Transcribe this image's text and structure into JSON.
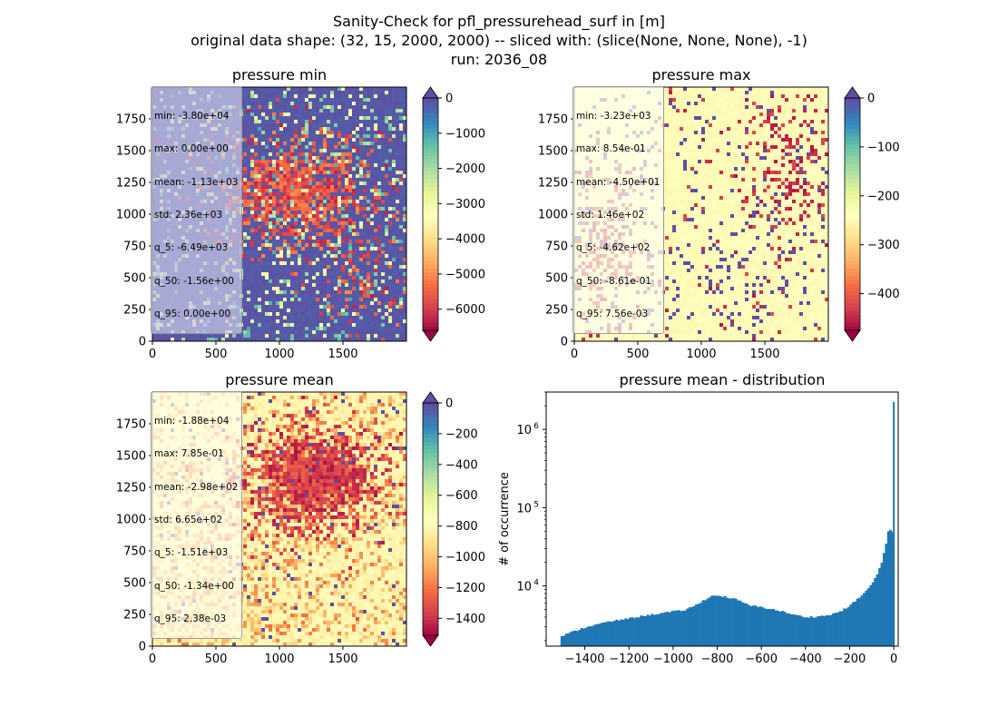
{
  "suptitle": {
    "line1": "Sanity-Check for pfl_pressurehead_surf in [m]",
    "line2": "original data shape: (32, 15, 2000, 2000) -- sliced with: (slice(None, None, None), -1)",
    "line3": "run: 2036_08"
  },
  "chart_data": [
    {
      "type": "heatmap",
      "title": "pressure min",
      "xlim": [
        0,
        2000
      ],
      "ylim": [
        0,
        2000
      ],
      "xticks": [
        0,
        500,
        1000,
        1500
      ],
      "yticks": [
        0,
        250,
        500,
        750,
        1000,
        1250,
        1500,
        1750
      ],
      "colormap": "Spectral",
      "colorbar": {
        "vmin": -6600,
        "vmax": 0,
        "ticks": [
          0,
          -1000,
          -2000,
          -3000,
          -4000,
          -5000,
          -6000
        ],
        "extend": "both"
      },
      "stats": [
        "min: -3.80e+04",
        "max: 0.00e+00",
        "mean: -1.13e+03",
        "std: 2.36e+03",
        "q_5: -6.49e+03",
        "q_50: -1.56e+00",
        "q_95: 0.00e+00"
      ]
    },
    {
      "type": "heatmap",
      "title": "pressure max",
      "xlim": [
        0,
        2000
      ],
      "ylim": [
        0,
        2000
      ],
      "xticks": [
        0,
        500,
        1000,
        1500
      ],
      "yticks": [
        0,
        250,
        500,
        750,
        1000,
        1250,
        1500,
        1750
      ],
      "colormap": "Spectral",
      "colorbar": {
        "vmin": -475,
        "vmax": 0,
        "ticks": [
          0,
          -100,
          -200,
          -300,
          -400
        ],
        "extend": "both"
      },
      "stats": [
        "min: -3.23e+03",
        "max: 8.54e-01",
        "mean: -4.50e+01",
        "std: 1.46e+02",
        "q_5: -4.62e+02",
        "q_50: -8.61e-01",
        "q_95: 7.56e-03"
      ]
    },
    {
      "type": "heatmap",
      "title": "pressure mean",
      "xlim": [
        0,
        2000
      ],
      "ylim": [
        0,
        2000
      ],
      "xticks": [
        0,
        500,
        1000,
        1500
      ],
      "yticks": [
        0,
        250,
        500,
        750,
        1000,
        1250,
        1500,
        1750
      ],
      "colormap": "Spectral",
      "colorbar": {
        "vmin": -1510,
        "vmax": 0,
        "ticks": [
          0,
          -200,
          -400,
          -600,
          -800,
          -1000,
          -1200,
          -1400
        ],
        "extend": "both"
      },
      "stats": [
        "min: -1.88e+04",
        "max: 7.85e-01",
        "mean: -2.98e+02",
        "std: 6.65e+02",
        "q_5: -1.51e+03",
        "q_50: -1.34e+00",
        "q_95: 2.38e-03"
      ]
    },
    {
      "type": "bar",
      "title": "pressure mean - distribution",
      "xlabel": "",
      "ylabel": "# of occurrence",
      "yscale": "log",
      "xlim": [
        -1575,
        20
      ],
      "ylim": [
        1700,
        3000000
      ],
      "xticks": [
        -1400,
        -1200,
        -1000,
        -800,
        -600,
        -400,
        -200,
        0
      ],
      "xtick_labels": [
        "−1400",
        "−1200",
        "−1000",
        "−800",
        "−600",
        "−400",
        "−200",
        "0"
      ],
      "yticks": [
        10000,
        100000,
        1000000
      ],
      "ytick_labels": [
        "10",
        "10",
        "10"
      ],
      "ytick_exponents": [
        "4",
        "5",
        "6"
      ],
      "color": "#1f77b4",
      "bin_width": 10,
      "profile": [
        [
          -1510,
          2250
        ],
        [
          -1470,
          2500
        ],
        [
          -1400,
          2950
        ],
        [
          -1300,
          3450
        ],
        [
          -1200,
          3850
        ],
        [
          -1100,
          4300
        ],
        [
          -1000,
          4700
        ],
        [
          -950,
          4900
        ],
        [
          -900,
          5600
        ],
        [
          -860,
          6600
        ],
        [
          -830,
          7400
        ],
        [
          -800,
          7500
        ],
        [
          -770,
          7350
        ],
        [
          -720,
          6800
        ],
        [
          -650,
          5600
        ],
        [
          -600,
          5350
        ],
        [
          -560,
          5100
        ],
        [
          -510,
          4750
        ],
        [
          -450,
          4250
        ],
        [
          -400,
          4000
        ],
        [
          -350,
          4050
        ],
        [
          -300,
          4200
        ],
        [
          -260,
          4500
        ],
        [
          -220,
          5100
        ],
        [
          -180,
          6200
        ],
        [
          -140,
          7800
        ],
        [
          -100,
          10500
        ],
        [
          -70,
          15000
        ],
        [
          -50,
          22000
        ],
        [
          -35,
          35000
        ],
        [
          -25,
          50000
        ],
        [
          -15,
          53000
        ],
        [
          -10,
          48000
        ]
      ],
      "spike": {
        "x": -2,
        "value": 2250000
      }
    }
  ]
}
